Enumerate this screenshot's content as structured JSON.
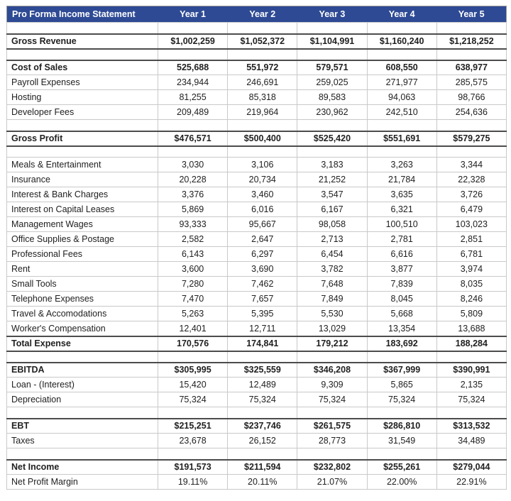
{
  "header": {
    "title": "Pro Forma Income Statement",
    "columns": [
      "Year 1",
      "Year 2",
      "Year 3",
      "Year 4",
      "Year 5"
    ]
  },
  "colors": {
    "header_bg": "#2e4a94",
    "header_text": "#ffffff",
    "body_text": "#212121",
    "grid_line": "#c9c9c9",
    "section_line": "#4c4c4c",
    "outer_border": "#9a9a9a"
  },
  "rows": [
    {
      "blank": true
    },
    {
      "label": "Gross Revenue",
      "bold": true,
      "top_dark": true,
      "bottom_dark": true,
      "values": [
        "$1,002,259",
        "$1,052,372",
        "$1,104,991",
        "$1,160,240",
        "$1,218,252"
      ]
    },
    {
      "blank": true
    },
    {
      "label": "Cost of Sales",
      "bold": true,
      "top_dark": true,
      "bottom_dark": false,
      "values": [
        "525,688",
        "551,972",
        "579,571",
        "608,550",
        "638,977"
      ]
    },
    {
      "label": "Payroll Expenses",
      "bold": false,
      "values": [
        "234,944",
        "246,691",
        "259,025",
        "271,977",
        "285,575"
      ]
    },
    {
      "label": "Hosting",
      "bold": false,
      "values": [
        "81,255",
        "85,318",
        "89,583",
        "94,063",
        "98,766"
      ]
    },
    {
      "label": "Developer Fees",
      "bold": false,
      "values": [
        "209,489",
        "219,964",
        "230,962",
        "242,510",
        "254,636"
      ]
    },
    {
      "blank": true
    },
    {
      "label": "Gross Profit",
      "bold": true,
      "top_dark": true,
      "bottom_dark": true,
      "values": [
        "$476,571",
        "$500,400",
        "$525,420",
        "$551,691",
        "$579,275"
      ]
    },
    {
      "blank": true
    },
    {
      "label": "Meals & Entertainment",
      "bold": false,
      "values": [
        "3,030",
        "3,106",
        "3,183",
        "3,263",
        "3,344"
      ]
    },
    {
      "label": "Insurance",
      "bold": false,
      "values": [
        "20,228",
        "20,734",
        "21,252",
        "21,784",
        "22,328"
      ]
    },
    {
      "label": "Interest & Bank Charges",
      "bold": false,
      "values": [
        "3,376",
        "3,460",
        "3,547",
        "3,635",
        "3,726"
      ]
    },
    {
      "label": "Interest on Capital Leases",
      "bold": false,
      "values": [
        "5,869",
        "6,016",
        "6,167",
        "6,321",
        "6,479"
      ]
    },
    {
      "label": "Management Wages",
      "bold": false,
      "values": [
        "93,333",
        "95,667",
        "98,058",
        "100,510",
        "103,023"
      ]
    },
    {
      "label": "Office Supplies & Postage",
      "bold": false,
      "values": [
        "2,582",
        "2,647",
        "2,713",
        "2,781",
        "2,851"
      ]
    },
    {
      "label": "Professional Fees",
      "bold": false,
      "values": [
        "6,143",
        "6,297",
        "6,454",
        "6,616",
        "6,781"
      ]
    },
    {
      "label": "Rent",
      "bold": false,
      "values": [
        "3,600",
        "3,690",
        "3,782",
        "3,877",
        "3,974"
      ]
    },
    {
      "label": "Small Tools",
      "bold": false,
      "values": [
        "7,280",
        "7,462",
        "7,648",
        "7,839",
        "8,035"
      ]
    },
    {
      "label": "Telephone Expenses",
      "bold": false,
      "values": [
        "7,470",
        "7,657",
        "7,849",
        "8,045",
        "8,246"
      ]
    },
    {
      "label": "Travel & Accomodations",
      "bold": false,
      "values": [
        "5,263",
        "5,395",
        "5,530",
        "5,668",
        "5,809"
      ]
    },
    {
      "label": "Worker's Compensation",
      "bold": false,
      "values": [
        "12,401",
        "12,711",
        "13,029",
        "13,354",
        "13,688"
      ]
    },
    {
      "label": "Total Expense",
      "bold": true,
      "top_dark": true,
      "bottom_dark": true,
      "values": [
        "170,576",
        "174,841",
        "179,212",
        "183,692",
        "188,284"
      ]
    },
    {
      "blank": true
    },
    {
      "label": "EBITDA",
      "bold": true,
      "top_dark": true,
      "bottom_dark": false,
      "values": [
        "$305,995",
        "$325,559",
        "$346,208",
        "$367,999",
        "$390,991"
      ]
    },
    {
      "label": "Loan - (Interest)",
      "bold": false,
      "values": [
        "15,420",
        "12,489",
        "9,309",
        "5,865",
        "2,135"
      ]
    },
    {
      "label": "Depreciation",
      "bold": false,
      "values": [
        "75,324",
        "75,324",
        "75,324",
        "75,324",
        "75,324"
      ]
    },
    {
      "blank": true
    },
    {
      "label": "EBT",
      "bold": true,
      "top_dark": true,
      "bottom_dark": false,
      "values": [
        "$215,251",
        "$237,746",
        "$261,575",
        "$286,810",
        "$313,532"
      ]
    },
    {
      "label": "Taxes",
      "bold": false,
      "values": [
        "23,678",
        "26,152",
        "28,773",
        "31,549",
        "34,489"
      ]
    },
    {
      "blank": true
    },
    {
      "label": "Net Income",
      "bold": true,
      "top_dark": true,
      "bottom_dark": false,
      "values": [
        "$191,573",
        "$211,594",
        "$232,802",
        "$255,261",
        "$279,044"
      ]
    },
    {
      "label": "Net Profit Margin",
      "bold": false,
      "values": [
        "19.11%",
        "20.11%",
        "21.07%",
        "22.00%",
        "22.91%"
      ]
    }
  ]
}
